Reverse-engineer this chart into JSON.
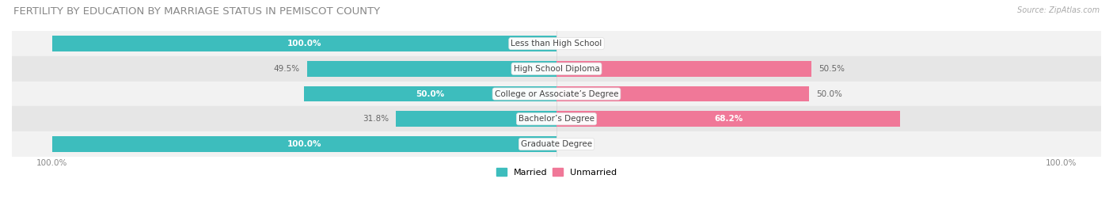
{
  "title": "FERTILITY BY EDUCATION BY MARRIAGE STATUS IN PEMISCOT COUNTY",
  "source": "Source: ZipAtlas.com",
  "categories": [
    "Less than High School",
    "High School Diploma",
    "College or Associate’s Degree",
    "Bachelor’s Degree",
    "Graduate Degree"
  ],
  "married": [
    100.0,
    49.5,
    50.0,
    31.8,
    100.0
  ],
  "unmarried": [
    0.0,
    50.5,
    50.0,
    68.2,
    0.0
  ],
  "married_color": "#3dbdbd",
  "unmarried_color": "#f07898",
  "row_bg_even": "#f2f2f2",
  "row_bg_odd": "#e6e6e6",
  "label_inside_color": "#ffffff",
  "label_outside_color": "#666666",
  "title_color": "#888888",
  "source_color": "#aaaaaa",
  "title_fontsize": 9.5,
  "source_fontsize": 7,
  "bar_label_fontsize": 7.5,
  "axis_label_fontsize": 7.5,
  "legend_fontsize": 8,
  "category_fontsize": 7.5,
  "bar_height": 0.62,
  "figsize": [
    14.06,
    2.69
  ],
  "dpi": 100
}
